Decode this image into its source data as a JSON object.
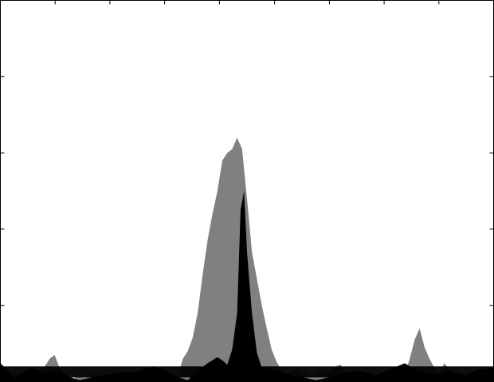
{
  "chart_data": {
    "type": "area",
    "title": "",
    "xlabel": "",
    "ylabel": "",
    "xlim": [
      0,
      100
    ],
    "ylim": [
      0,
      5
    ],
    "grid": false,
    "legend": "none",
    "baseline": 0.2,
    "x_ticks": [
      0,
      11.1,
      22.2,
      33.3,
      44.4,
      55.6,
      66.7,
      77.8,
      88.9,
      100
    ],
    "y_ticks": [
      0,
      1,
      2,
      3,
      4,
      5
    ],
    "series": [
      {
        "color": "#808080",
        "x": [
          0,
          1,
          2,
          3,
          4,
          5,
          6,
          7,
          8,
          9,
          10,
          11,
          12,
          13,
          14,
          15,
          16,
          17,
          18,
          19,
          20,
          21,
          22,
          23,
          24,
          25,
          26,
          27,
          28,
          29,
          30,
          31,
          32,
          33,
          34,
          35,
          36,
          37,
          38,
          39,
          40,
          41,
          42,
          43,
          44,
          45,
          46,
          47,
          48,
          49,
          50,
          51,
          52,
          53,
          54,
          55,
          56,
          57,
          58,
          59,
          60,
          61,
          62,
          63,
          64,
          65,
          66,
          67,
          68,
          69,
          70,
          71,
          72,
          73,
          74,
          75,
          76,
          77,
          78,
          79,
          80,
          81,
          82,
          83,
          84,
          85,
          86,
          87,
          88,
          89,
          90,
          91,
          92,
          93,
          94,
          95,
          96,
          97,
          98,
          99,
          100
        ],
        "y": [
          0.15,
          0.1,
          0.05,
          0.12,
          0.08,
          0.1,
          0.06,
          0.1,
          0.15,
          0.2,
          0.3,
          0.35,
          0.18,
          0.06,
          0.0,
          0.04,
          0.1,
          0.05,
          0.08,
          0.12,
          0.06,
          0.1,
          0.08,
          0.14,
          0.06,
          0.04,
          0.08,
          0.06,
          0.1,
          0.12,
          0.15,
          0.18,
          0.08,
          0.14,
          0.1,
          0.12,
          0.08,
          0.3,
          0.4,
          0.58,
          0.9,
          1.4,
          1.85,
          2.2,
          2.5,
          2.9,
          3.0,
          3.05,
          3.2,
          3.05,
          2.4,
          1.7,
          1.35,
          1.0,
          0.7,
          0.42,
          0.26,
          0.15,
          0.1,
          0.12,
          0.18,
          0.1,
          0.14,
          0.08,
          0.1,
          0.16,
          0.12,
          0.14,
          0.2,
          0.22,
          0.1,
          0.08,
          0.06,
          0.1,
          0.12,
          0.14,
          0.08,
          0.1,
          0.06,
          0.1,
          0.08,
          0.14,
          0.1,
          0.3,
          0.55,
          0.7,
          0.45,
          0.3,
          0.18,
          0.1,
          0.24,
          0.16,
          0.12,
          0.14,
          0.1,
          0.08,
          0.12,
          0.1,
          0.08,
          0.1,
          0.12
        ]
      },
      {
        "color": "#000000",
        "x": [
          0,
          3,
          6,
          9,
          12,
          14,
          16,
          19,
          22,
          25,
          28,
          31,
          33,
          35,
          38,
          40,
          42,
          44,
          45,
          46,
          47,
          48,
          48.7,
          49.4,
          50,
          51,
          52,
          53,
          55,
          58,
          61,
          64,
          67,
          70,
          73,
          76,
          79,
          82,
          85,
          88,
          91,
          94,
          97,
          100
        ],
        "y": [
          0.24,
          0.05,
          0.18,
          0.12,
          0.14,
          0.06,
          0.02,
          0.06,
          0.1,
          0.12,
          0.14,
          0.2,
          0.16,
          0.08,
          0.02,
          0.14,
          0.24,
          0.32,
          0.28,
          0.22,
          0.42,
          0.9,
          2.25,
          2.5,
          1.7,
          0.9,
          0.38,
          0.18,
          0.16,
          0.1,
          0.06,
          0.02,
          0.06,
          0.12,
          0.14,
          0.08,
          0.16,
          0.24,
          0.12,
          0.1,
          0.14,
          0.08,
          0.16,
          0.18
        ]
      }
    ]
  }
}
